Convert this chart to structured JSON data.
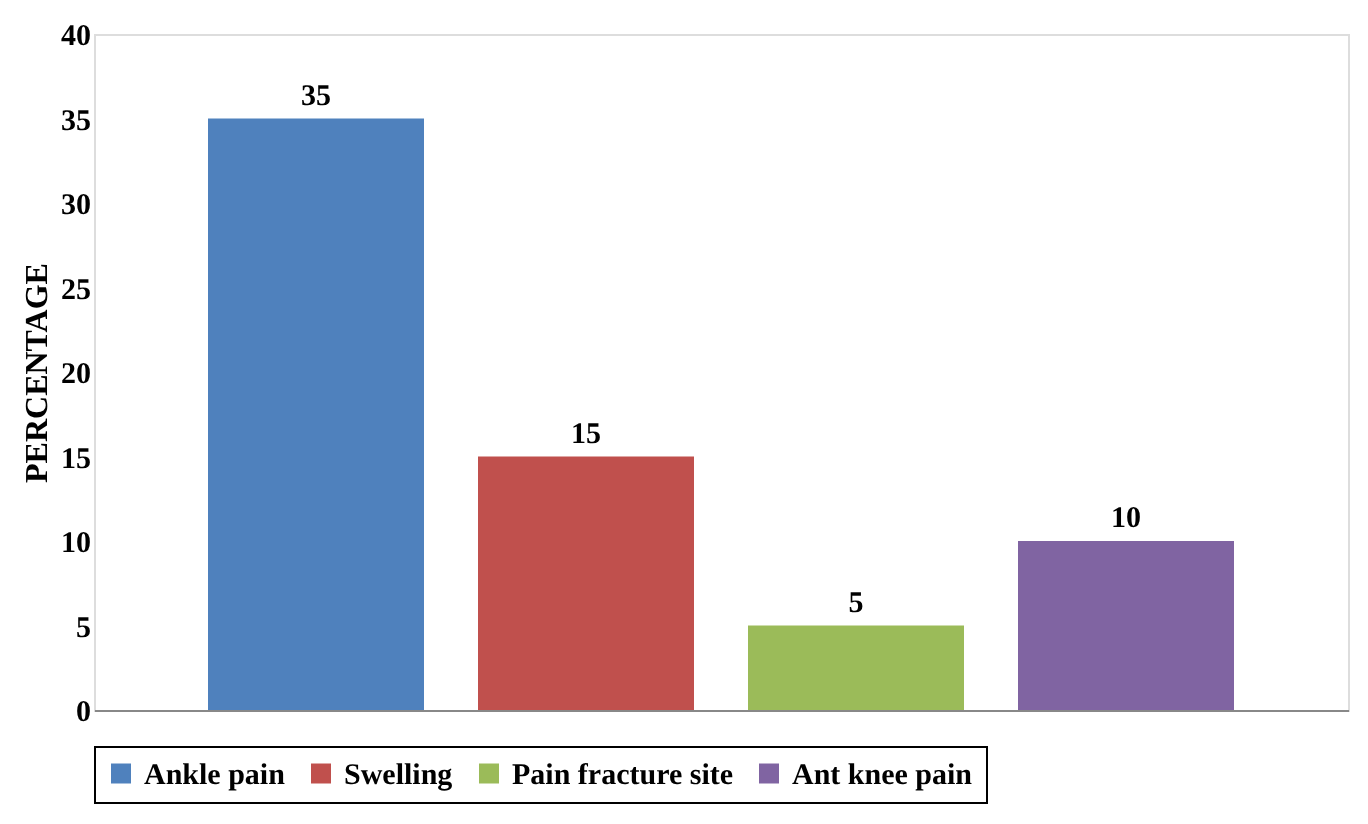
{
  "chart_data": {
    "type": "bar",
    "ylabel": "PERCENTAGE",
    "categories": [
      null
    ],
    "series": [
      {
        "name": "Ankle pain",
        "color": "#4f81bd",
        "values": [
          35
        ]
      },
      {
        "name": "Swelling",
        "color": "#c0504d",
        "values": [
          15
        ]
      },
      {
        "name": "Pain fracture site",
        "color": "#9bbb59",
        "values": [
          5
        ]
      },
      {
        "name": "Ant knee pain",
        "color": "#8064a2",
        "values": [
          10
        ]
      }
    ],
    "ylim": [
      0,
      40
    ],
    "yticks": [
      0,
      5,
      10,
      15,
      20,
      25,
      30,
      35,
      40
    ],
    "data_labels": true,
    "legend": "bottom",
    "grid": false
  }
}
